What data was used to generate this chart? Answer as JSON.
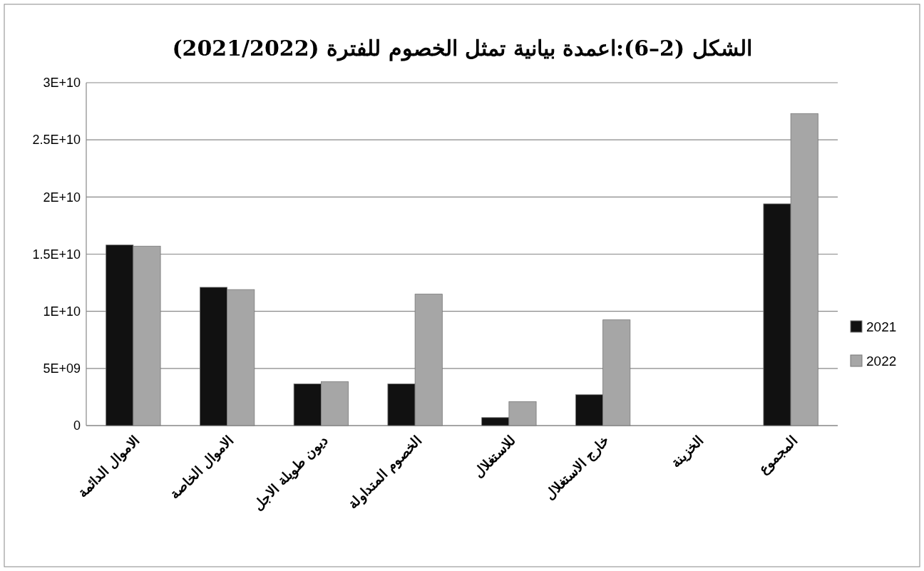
{
  "chart_data": {
    "type": "bar",
    "title": "الشكل (2–6):اعمدة بيانية تمثل الخصوم للفترة (2021/2022)",
    "categories": [
      "الاموال الدائمة",
      "الاموال الخاصة",
      "ديون طويلة الاجل",
      "الخصوم المتداولة",
      "للاستغلال",
      "خارج الاستغلال",
      "الخزينة",
      "المجموع"
    ],
    "series": [
      {
        "name": "2021",
        "color": "#111111",
        "values": [
          15800000000,
          12100000000,
          3650000000,
          3650000000,
          700000000,
          2700000000,
          null,
          19400000000
        ]
      },
      {
        "name": "2022",
        "color": "#a6a6a6",
        "values": [
          15700000000,
          11900000000,
          3850000000,
          11500000000,
          2100000000,
          9250000000,
          null,
          27300000000
        ]
      }
    ],
    "ylim": [
      0,
      30000000000
    ],
    "yticks": [
      {
        "value": 0,
        "label": "0"
      },
      {
        "value": 5000000000,
        "label": "5E+09"
      },
      {
        "value": 10000000000,
        "label": "1E+10"
      },
      {
        "value": 15000000000,
        "label": "1.5E+10"
      },
      {
        "value": 20000000000,
        "label": "2E+10"
      },
      {
        "value": 25000000000,
        "label": "2.5E+10"
      },
      {
        "value": 30000000000,
        "label": "3E+10"
      }
    ],
    "grid": "y",
    "legend": "right"
  }
}
